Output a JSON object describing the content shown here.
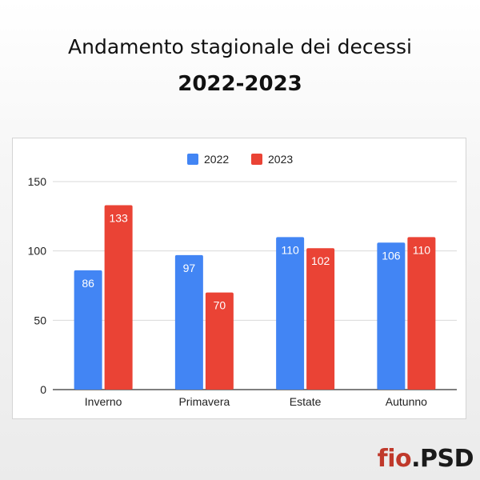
{
  "title": "Andamento stagionale dei decessi",
  "subtitle": "2022-2023",
  "logo": {
    "text_main": "fio",
    "text_rest": ".PSD"
  },
  "colors": {
    "series_2022": "#4285f4",
    "series_2023": "#ea4335"
  },
  "chart_data": {
    "type": "bar",
    "categories": [
      "Inverno",
      "Primavera",
      "Estate",
      "Autunno"
    ],
    "series": [
      {
        "name": "2022",
        "values": [
          86,
          97,
          110,
          106
        ],
        "color": "#4285f4"
      },
      {
        "name": "2023",
        "values": [
          133,
          70,
          102,
          110
        ],
        "color": "#ea4335"
      }
    ],
    "yticks": [
      0,
      50,
      100,
      150
    ],
    "ylim": [
      0,
      150
    ],
    "grid": true,
    "legend": "top-center",
    "data_labels": true
  }
}
